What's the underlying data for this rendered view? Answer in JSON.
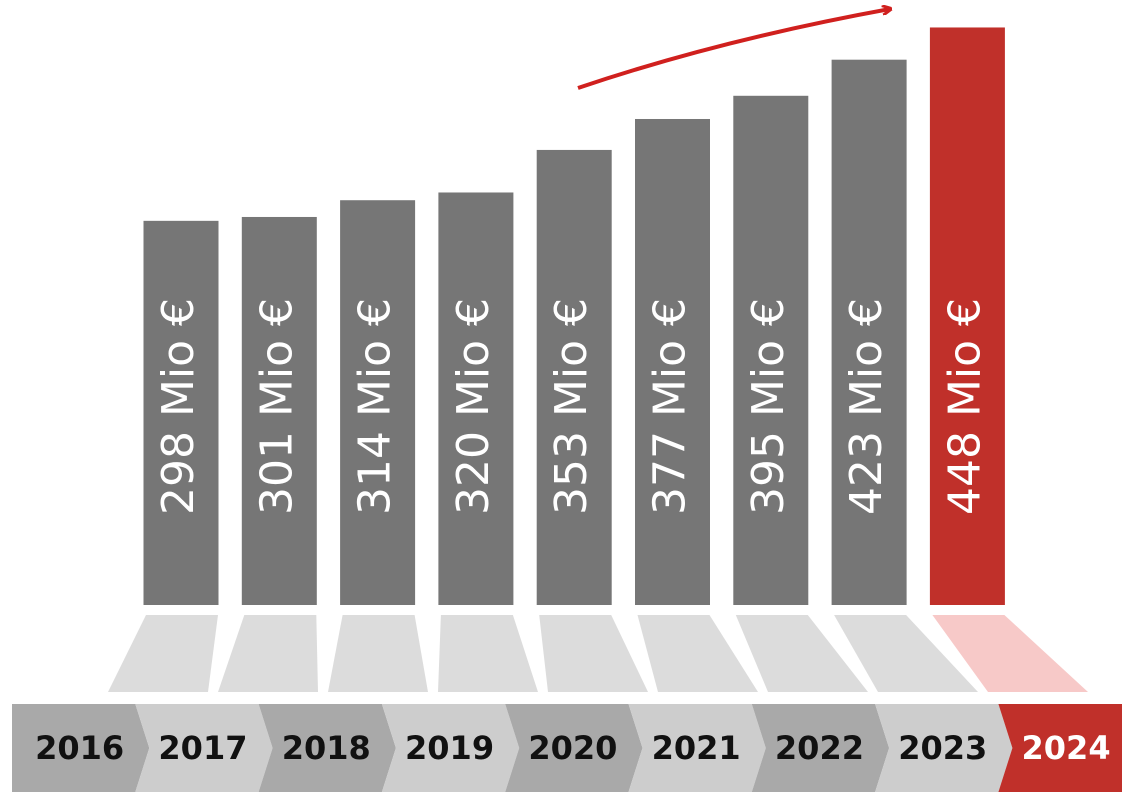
{
  "chart_data": {
    "type": "bar",
    "categories": [
      "2016",
      "2017",
      "2018",
      "2019",
      "2020",
      "2021",
      "2022",
      "2023",
      "2024"
    ],
    "values": [
      298,
      301,
      314,
      320,
      353,
      377,
      395,
      423,
      448
    ],
    "value_labels": [
      "298 Mio €",
      "301 Mio €",
      "314 Mio €",
      "320 Mio €",
      "353 Mio €",
      "377 Mio €",
      "395 Mio €",
      "423 Mio €",
      "448 Mio €"
    ],
    "colors": [
      "#767676",
      "#767676",
      "#767676",
      "#767676",
      "#767676",
      "#767676",
      "#767676",
      "#767676",
      "#c0302a"
    ],
    "ylim": [
      0,
      460
    ]
  }
}
